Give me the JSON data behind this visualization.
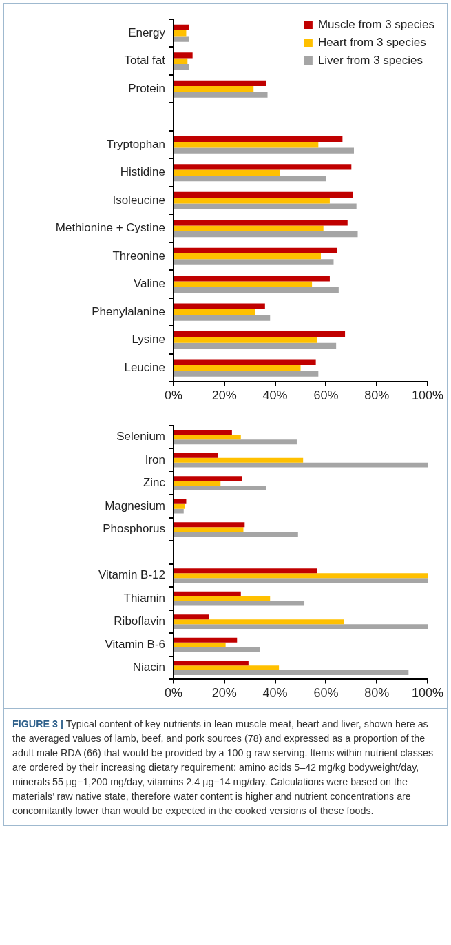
{
  "chart_data": [
    {
      "type": "bar",
      "orientation": "horizontal",
      "categories": [
        "Energy",
        "Total fat",
        "Protein",
        null,
        "Tryptophan",
        "Histidine",
        "Isoleucine",
        "Methionine + Cystine",
        "Threonine",
        "Valine",
        "Phenylalanine",
        "Lysine",
        "Leucine"
      ],
      "series": [
        {
          "name": "Muscle from 3 species",
          "color": "#c00000",
          "values": [
            6,
            7.5,
            36.5,
            null,
            66.5,
            70,
            70.5,
            68.5,
            64.5,
            61.5,
            36,
            67.5,
            56
          ]
        },
        {
          "name": "Heart from 3 species",
          "color": "#ffc000",
          "values": [
            5,
            5.5,
            31.5,
            null,
            57,
            42,
            61.5,
            59,
            58,
            54.5,
            32,
            56.5,
            50
          ]
        },
        {
          "name": "Liver from 3 species",
          "color": "#a5a5a5",
          "values": [
            6,
            6,
            37,
            null,
            71,
            60,
            72,
            72.5,
            63,
            65,
            38,
            64,
            57
          ]
        }
      ],
      "xlim": [
        0,
        100
      ],
      "xticks": [
        {
          "value": 0,
          "label": "0%"
        },
        {
          "value": 20,
          "label": "20%"
        },
        {
          "value": 40,
          "label": "40%"
        },
        {
          "value": 60,
          "label": "60%"
        },
        {
          "value": 80,
          "label": "80%"
        },
        {
          "value": 100,
          "label": "100%"
        }
      ],
      "grid": false,
      "legend": "top right"
    },
    {
      "type": "bar",
      "orientation": "horizontal",
      "categories": [
        "Selenium",
        "Iron",
        "Zinc",
        "Magnesium",
        "Phosphorus",
        null,
        "Vitamin B-12",
        "Thiamin",
        "Riboflavin",
        "Vitamin B-6",
        "Niacin"
      ],
      "series": [
        {
          "color": "#c00000",
          "values": [
            23,
            17.5,
            27,
            5,
            28,
            null,
            56.5,
            26.5,
            14,
            25,
            29.5
          ]
        },
        {
          "color": "#ffc000",
          "values": [
            26.5,
            51,
            18.5,
            4.5,
            27.5,
            null,
            100,
            38,
            67,
            20.5,
            41.5
          ]
        },
        {
          "color": "#a5a5a5",
          "values": [
            48.5,
            100,
            36.5,
            4,
            49,
            null,
            100,
            51.5,
            100,
            34,
            92.5
          ]
        }
      ],
      "xlim": [
        0,
        100
      ],
      "xticks": [
        {
          "value": 0,
          "label": "0%"
        },
        {
          "value": 20,
          "label": "20%"
        },
        {
          "value": 40,
          "label": "40%"
        },
        {
          "value": 60,
          "label": "60%"
        },
        {
          "value": 80,
          "label": "80%"
        },
        {
          "value": 100,
          "label": "100%"
        }
      ],
      "grid": false,
      "legend": false,
      "annotations": [
        "FIGURE 3 |",
        "Typical content of key nutrients in lean muscle meat, heart and liver, shown here as the averaged values of lamb, beef, and pork sources (78) and expressed as a proportion of the adult male RDA (66) that would be provided by a 100 g raw serving. Items within nutrient classes are ordered by their increasing dietary requirement: amino acids 5–42 mg/kg bodyweight/day, minerals 55 µg−1,200 mg/day, vitamins 2.4 µg−14 mg/day. Calculations were based on the materials’ raw native state, therefore water content is higher and nutrient concentrations are concomitantly lower than would be expected in the cooked versions of these foods."
      ]
    }
  ]
}
